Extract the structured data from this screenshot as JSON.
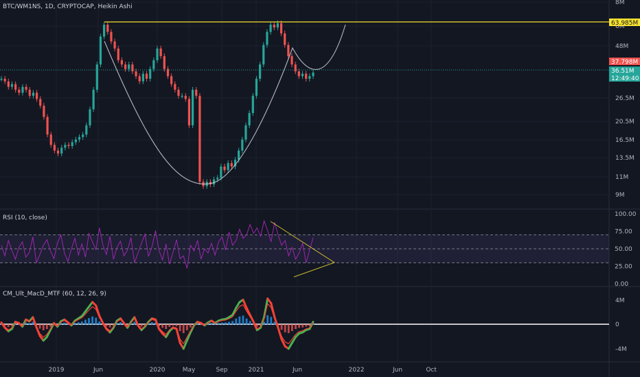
{
  "chart_data": [
    {
      "type": "line",
      "title": "BTC/WM1NS, 1D, CRYPTOCAP, Heikin Ashi",
      "scale": "log",
      "price_axis_ticks": [
        "8M",
        "6M",
        "48M",
        "26.5M",
        "20.5M",
        "16.5M",
        "13.5M",
        "11M",
        "9M"
      ],
      "price_badges": [
        {
          "text": "63.985M",
          "color": "#f7e32f"
        },
        {
          "text": "37.798M",
          "color": "#ef5350"
        },
        {
          "text": "36.51M",
          "color": "#26a69a"
        },
        {
          "text": "12:49:40",
          "color": "#26a69a"
        }
      ],
      "x_labels": [
        "2019",
        "Jun",
        "2020",
        "May",
        "Sep",
        "2021",
        "Jun",
        "2022",
        "Jun",
        "Oct"
      ],
      "series": [
        {
          "values": [
            34,
            33,
            31,
            32,
            30,
            29,
            31,
            30,
            28,
            29,
            27,
            25,
            22,
            18,
            16,
            15,
            14.5,
            15.5,
            16,
            15.8,
            16.5,
            17,
            17.5,
            18,
            20,
            24,
            30,
            40,
            55,
            63,
            58,
            52,
            48,
            42,
            40,
            38,
            40,
            37,
            35,
            33,
            36,
            34,
            38,
            42,
            48,
            44,
            38,
            35,
            32,
            30,
            28,
            28,
            27,
            20,
            30,
            28,
            10.5,
            10,
            10.5,
            10.2,
            10.8,
            11,
            12.5,
            12,
            13,
            12.5,
            13.5,
            15,
            17,
            20,
            23,
            28,
            34,
            40,
            50,
            58,
            63,
            61,
            64,
            57,
            50,
            44,
            40,
            37,
            35,
            36,
            34,
            35,
            36.5
          ]
        }
      ]
    },
    {
      "type": "line",
      "title": "RSI (10, close)",
      "ylim": [
        0,
        100
      ],
      "y_ticks": [
        "100.00",
        "75.00",
        "50.00",
        "25.00",
        "0.00"
      ],
      "upper_band": 70,
      "lower_band": 30,
      "series": [
        {
          "values": [
            55,
            40,
            62,
            48,
            35,
            52,
            60,
            38,
            45,
            67,
            30,
            42,
            55,
            63,
            47,
            36,
            58,
            70,
            44,
            32,
            50,
            65,
            41,
            57,
            38,
            72,
            60,
            49,
            80,
            55,
            42,
            68,
            35,
            52,
            61,
            40,
            48,
            66,
            30,
            44,
            58,
            71,
            39,
            53,
            76,
            48,
            34,
            57,
            28,
            45,
            63,
            36,
            40,
            22,
            55,
            47,
            62,
            35,
            50,
            44,
            58,
            41,
            60,
            67,
            48,
            74,
            55,
            62,
            78,
            65,
            70,
            85,
            72,
            80,
            68,
            90,
            76,
            60,
            88,
            70,
            55,
            62,
            40,
            52,
            35,
            44,
            58,
            30,
            48,
            66
          ]
        }
      ]
    },
    {
      "type": "line",
      "title": "CM_Ult_MacD_MTF (60, 12, 26, 9)",
      "y_ticks": [
        "4M",
        "0",
        "-4M"
      ],
      "series": [
        {
          "values": [
            0.3,
            -0.6,
            -1.2,
            -0.8,
            0.4,
            0.2,
            -0.4,
            0.8,
            0.5,
            1.2,
            -0.5,
            -2.0,
            -2.8,
            -2.2,
            -1.0,
            0.2,
            -0.4,
            0.5,
            0.8,
            0.3,
            -0.2,
            0.6,
            1.0,
            1.4,
            2.2,
            3.0,
            3.8,
            3.2,
            1.4,
            0.2,
            -0.8,
            -1.4,
            -0.6,
            0.6,
            1.0,
            0.2,
            -0.6,
            0.4,
            1.2,
            -0.2,
            -1.0,
            -0.4,
            0.4,
            1.0,
            0.8,
            -0.8,
            -1.6,
            -2.2,
            -1.2,
            -0.6,
            -0.8,
            -3.2,
            -4.2,
            -2.8,
            -1.4,
            -0.2,
            0.4,
            0.2,
            -0.2,
            0.3,
            0.6,
            0.2,
            0.6,
            0.8,
            0.9,
            1.2,
            1.6,
            2.8,
            3.8,
            4.2,
            2.8,
            1.6,
            0.4,
            -1.0,
            -0.6,
            1.2,
            4.4,
            3.6,
            1.2,
            -0.6,
            -2.6,
            -3.8,
            -4.2,
            -3.2,
            -2.2,
            -1.6,
            -1.4,
            -1.0,
            -0.8,
            0.4
          ]
        }
      ]
    }
  ]
}
